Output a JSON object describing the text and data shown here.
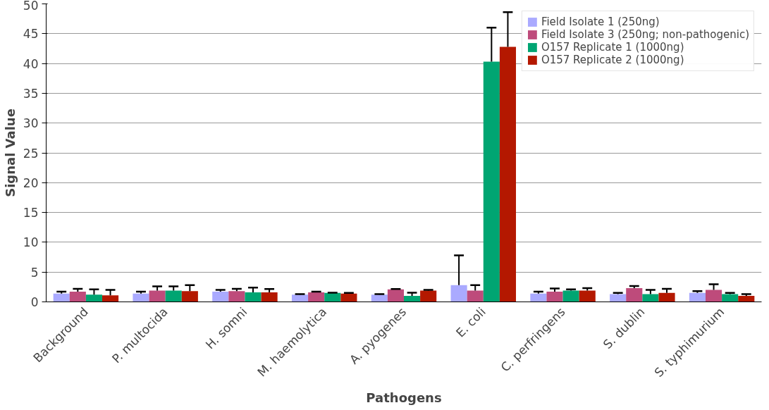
{
  "chart_data": {
    "type": "bar",
    "xlabel": "Pathogens",
    "ylabel": "Signal Value",
    "categories": [
      "Background",
      "P. multocida",
      "H. somni",
      "M. haemolytica",
      "A. pyogenes",
      "E. coli",
      "C. perfringens",
      "S. dublin",
      "S. typhimurium"
    ],
    "series": [
      {
        "name": "Field Isolate 1 (250ng)",
        "color": "#aaaaff",
        "values": [
          1.4,
          1.4,
          1.7,
          1.2,
          1.2,
          2.8,
          1.4,
          1.3,
          1.5
        ],
        "errors": [
          0.3,
          0.3,
          0.3,
          0.1,
          0.1,
          5.0,
          0.3,
          0.2,
          0.3
        ]
      },
      {
        "name": "Field Isolate 3 (250ng; non-pathogenic)",
        "color": "#be4b7b",
        "values": [
          1.7,
          1.9,
          1.8,
          1.6,
          2.1,
          1.9,
          1.7,
          2.3,
          2.0
        ],
        "errors": [
          0.5,
          0.7,
          0.4,
          0.1,
          0.05,
          0.9,
          0.55,
          0.35,
          0.95
        ]
      },
      {
        "name": "O157 Replicate 1 (1000ng)",
        "color": "#00a572",
        "values": [
          1.2,
          1.9,
          1.6,
          1.5,
          1.0,
          40.3,
          1.9,
          1.3,
          1.3
        ],
        "errors": [
          0.9,
          0.7,
          0.8,
          0.05,
          0.55,
          5.7,
          0.2,
          0.7,
          0.2
        ]
      },
      {
        "name": "O157 Replicate 2 (1000ng)",
        "color": "#b41800",
        "values": [
          1.1,
          1.8,
          1.6,
          1.4,
          1.9,
          42.8,
          1.9,
          1.5,
          1.0
        ],
        "errors": [
          0.9,
          1.0,
          0.55,
          0.1,
          0.1,
          5.8,
          0.4,
          0.7,
          0.3
        ]
      }
    ],
    "ylim": [
      0,
      50
    ],
    "yticks": [
      0,
      5,
      10,
      15,
      20,
      25,
      30,
      35,
      40,
      45,
      50
    ],
    "grid": "y",
    "legend": "top right"
  }
}
